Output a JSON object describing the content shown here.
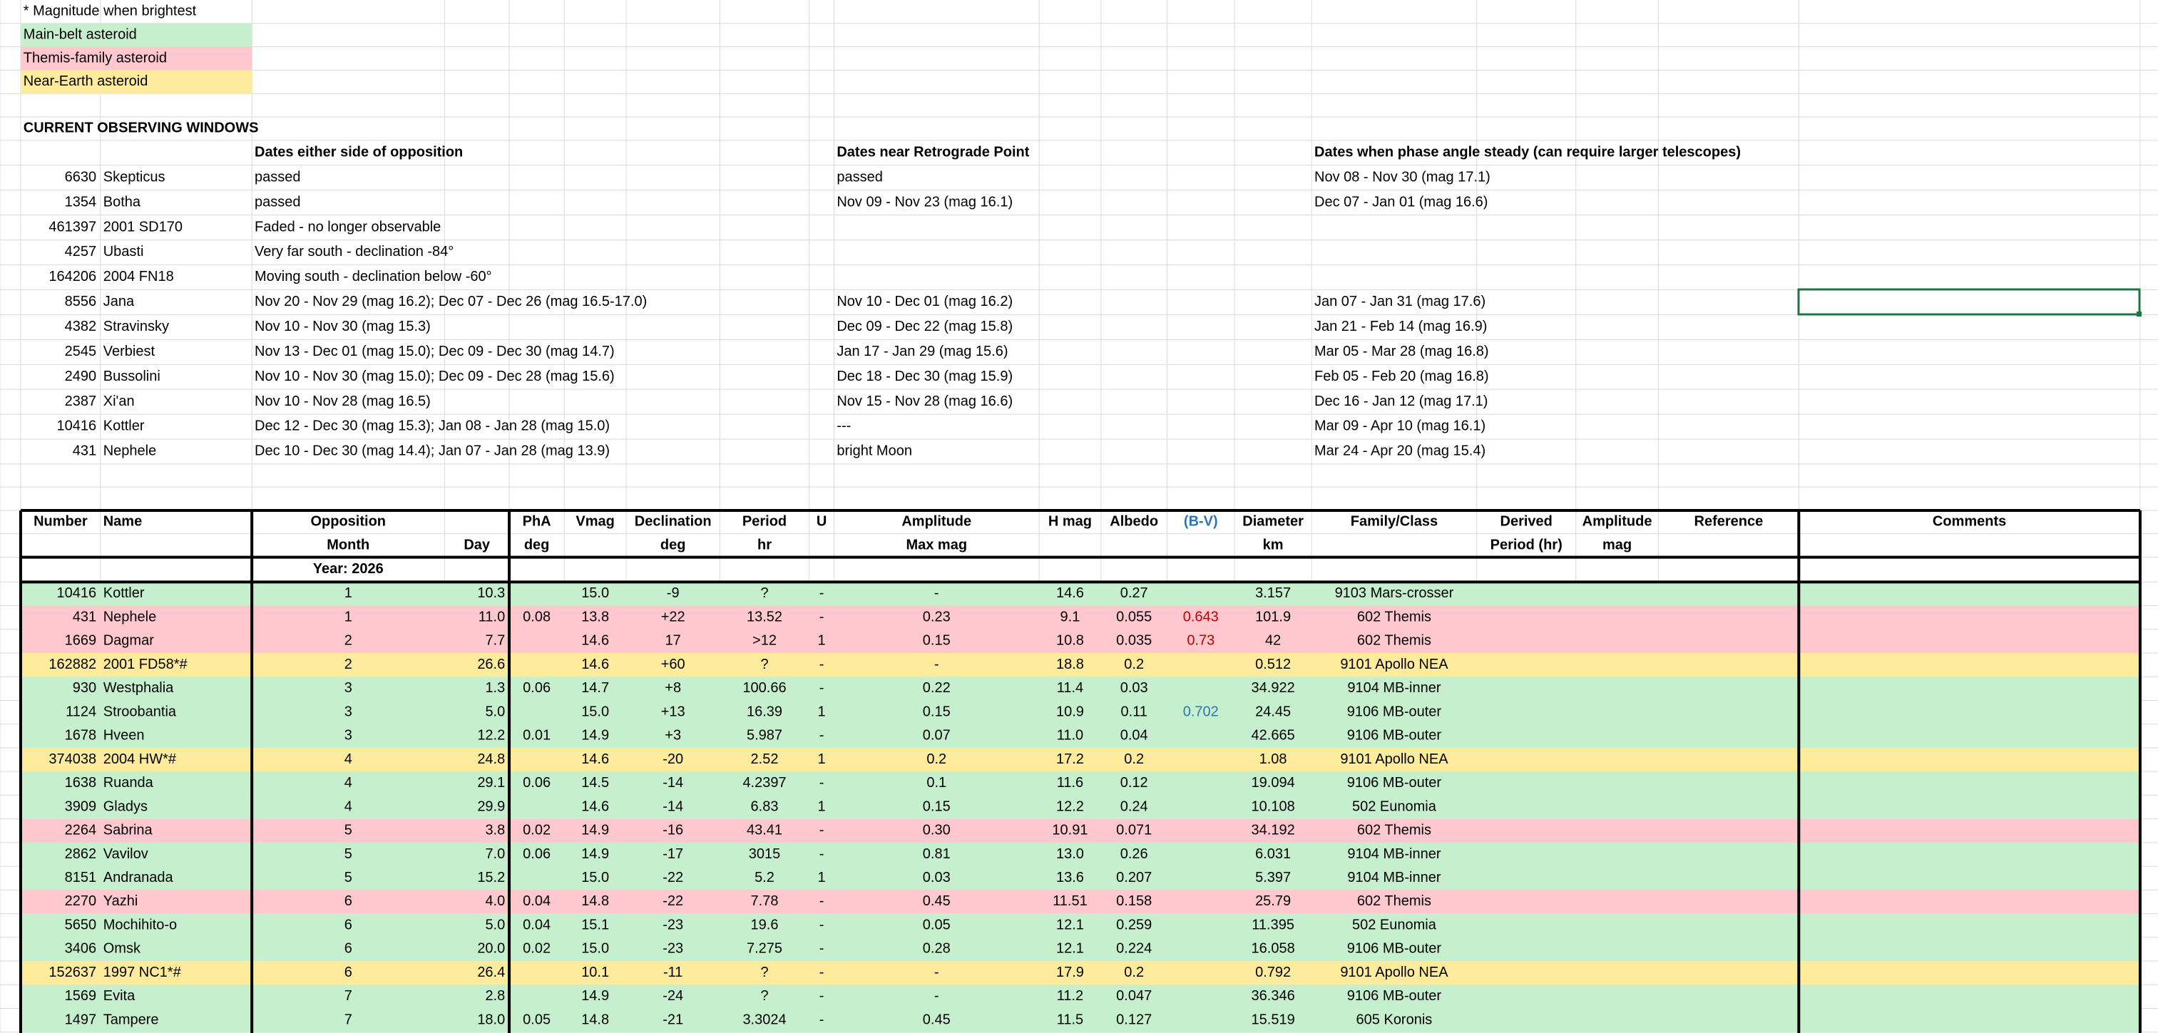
{
  "legend": {
    "note": "* Magnitude when brightest",
    "items": [
      {
        "label": "Main-belt asteroid",
        "color": "#c6efce"
      },
      {
        "label": "Themis-family asteroid",
        "color": "#ffc7ce"
      },
      {
        "label": "Near-Earth asteroid",
        "color": "#ffeb9c"
      }
    ]
  },
  "windows": {
    "title": "CURRENT OBSERVING WINDOWS",
    "headers": [
      "Dates either side of opposition",
      "Dates near Retrograde Point",
      "Dates when phase angle steady (can require larger telescopes)"
    ],
    "rows": [
      [
        "6630",
        "Skepticus",
        "passed",
        "passed",
        "Nov 08 - Nov 30 (mag 17.1)"
      ],
      [
        "1354",
        "Botha",
        "passed",
        "Nov 09 - Nov 23 (mag 16.1)",
        "Dec 07 - Jan 01 (mag 16.6)"
      ],
      [
        "461397",
        "2001 SD170",
        "Faded - no longer observable",
        null,
        null
      ],
      [
        "4257",
        "Ubasti",
        "Very far south - declination  -84°",
        null,
        null
      ],
      [
        "164206",
        "2004 FN18",
        "Moving south - declination below -60°",
        null,
        null
      ],
      [
        "8556",
        "Jana",
        "Nov 20 - Nov 29 (mag 16.2); Dec 07 - Dec 26 (mag 16.5-17.0)",
        "Nov 10 - Dec 01 (mag 16.2)",
        "Jan 07 - Jan 31 (mag 17.6)"
      ],
      [
        "4382",
        "Stravinsky",
        "Nov 10 - Nov 30 (mag 15.3)",
        "Dec 09 - Dec 22 (mag 15.8)",
        "Jan 21 - Feb 14 (mag 16.9)"
      ],
      [
        "2545",
        "Verbiest",
        "Nov 13 - Dec 01 (mag 15.0); Dec 09 - Dec 30 (mag 14.7)",
        "Jan 17 - Jan 29 (mag 15.6)",
        "Mar 05 - Mar 28 (mag 16.8)"
      ],
      [
        "2490",
        "Bussolini",
        "Nov 10 - Nov 30 (mag 15.0); Dec 09 - Dec 28 (mag 15.6)",
        "Dec 18 - Dec 30 (mag 15.9)",
        "Feb 05 - Feb 20 (mag 16.8)"
      ],
      [
        "2387",
        "Xi'an",
        "Nov 10 - Nov 28 (mag 16.5)",
        "Nov 15 - Nov 28 (mag 16.6)",
        "Dec 16 - Jan 12 (mag 17.1)"
      ],
      [
        "10416",
        "Kottler",
        "Dec 12 - Dec 30 (mag 15.3); Jan 08 - Jan 28 (mag 15.0)",
        "---",
        "Mar 09 - Apr 10 (mag 16.1)"
      ],
      [
        "431",
        "Nephele",
        "Dec 10 - Dec 30 (mag 14.4); Jan 07 - Jan 28 (mag 13.9)",
        "bright Moon",
        "Mar 24 - Apr 20 (mag 15.4)"
      ]
    ]
  },
  "table": {
    "header_bv_color": "#2e75b6",
    "header_rows": [
      [
        "Number",
        "Name",
        "Opposition",
        null,
        "PhA",
        "Vmag",
        "Declination",
        "Period",
        "U",
        "Amplitude",
        "H mag",
        "Albedo",
        "(B-V)",
        "Diameter",
        "Family/Class",
        "Derived",
        "Amplitude",
        "Reference",
        "Comments"
      ],
      [
        null,
        null,
        "Month",
        "Day",
        "deg",
        null,
        "deg",
        "hr",
        null,
        "Max mag",
        null,
        null,
        null,
        "km",
        null,
        "Period (hr)",
        "mag",
        null,
        null
      ],
      [
        null,
        null,
        "Year: 2026",
        null,
        null,
        null,
        null,
        null,
        null,
        null,
        null,
        null,
        null,
        null,
        null,
        null,
        null,
        null,
        null
      ]
    ],
    "rows": [
      {
        "fill": "#c6efce",
        "cells": [
          "10416",
          "Kottler",
          "1",
          "10.3",
          null,
          "15.0",
          "-9",
          "?",
          "-",
          "-",
          "14.6",
          "0.27",
          null,
          "3.157",
          "9103 Mars-crosser"
        ]
      },
      {
        "fill": "#ffc7ce",
        "bv_color": "#c00000",
        "cells": [
          "431",
          "Nephele",
          "1",
          "11.0",
          "0.08",
          "13.8",
          "+22",
          "13.52",
          "-",
          "0.23",
          "9.1",
          "0.055",
          "0.643",
          "101.9",
          "602 Themis"
        ]
      },
      {
        "fill": "#ffc7ce",
        "bv_color": "#c00000",
        "cells": [
          "1669",
          "Dagmar",
          "2",
          "7.7",
          null,
          "14.6",
          "17",
          ">12",
          "1",
          "0.15",
          "10.8",
          "0.035",
          "0.73",
          "42",
          "602 Themis"
        ]
      },
      {
        "fill": "#ffeb9c",
        "cells": [
          "162882",
          "2001 FD58*#",
          "2",
          "26.6",
          null,
          "14.6",
          "+60",
          "?",
          "-",
          "-",
          "18.8",
          "0.2",
          null,
          "0.512",
          "9101 Apollo NEA"
        ]
      },
      {
        "fill": "#c6efce",
        "cells": [
          "930",
          "Westphalia",
          "3",
          "1.3",
          "0.06",
          "14.7",
          "+8",
          "100.66",
          "-",
          "0.22",
          "11.4",
          "0.03",
          null,
          "34.922",
          "9104 MB-inner"
        ]
      },
      {
        "fill": "#c6efce",
        "bv_color": "#2e75b6",
        "cells": [
          "1124",
          "Stroobantia",
          "3",
          "5.0",
          null,
          "15.0",
          "+13",
          "16.39",
          "1",
          "0.15",
          "10.9",
          "0.11",
          "0.702",
          "24.45",
          "9106 MB-outer"
        ]
      },
      {
        "fill": "#c6efce",
        "cells": [
          "1678",
          "Hveen",
          "3",
          "12.2",
          "0.01",
          "14.9",
          "+3",
          "5.987",
          "-",
          "0.07",
          "11.0",
          "0.04",
          null,
          "42.665",
          "9106 MB-outer"
        ]
      },
      {
        "fill": "#ffeb9c",
        "cells": [
          "374038",
          "2004 HW*#",
          "4",
          "24.8",
          null,
          "14.6",
          "-20",
          "2.52",
          "1",
          "0.2",
          "17.2",
          "0.2",
          null,
          "1.08",
          "9101 Apollo NEA"
        ]
      },
      {
        "fill": "#c6efce",
        "cells": [
          "1638",
          "Ruanda",
          "4",
          "29.1",
          "0.06",
          "14.5",
          "-14",
          "4.2397",
          "-",
          "0.1",
          "11.6",
          "0.12",
          null,
          "19.094",
          "9106 MB-outer"
        ]
      },
      {
        "fill": "#c6efce",
        "cells": [
          "3909",
          "Gladys",
          "4",
          "29.9",
          null,
          "14.6",
          "-14",
          "6.83",
          "1",
          "0.15",
          "12.2",
          "0.24",
          null,
          "10.108",
          "502 Eunomia"
        ]
      },
      {
        "fill": "#ffc7ce",
        "cells": [
          "2264",
          "Sabrina",
          "5",
          "3.8",
          "0.02",
          "14.9",
          "-16",
          "43.41",
          "-",
          "0.30",
          "10.91",
          "0.071",
          null,
          "34.192",
          "602 Themis"
        ]
      },
      {
        "fill": "#c6efce",
        "cells": [
          "2862",
          "Vavilov",
          "5",
          "7.0",
          "0.06",
          "14.9",
          "-17",
          "3015",
          "-",
          "0.81",
          "13.0",
          "0.26",
          null,
          "6.031",
          "9104 MB-inner"
        ]
      },
      {
        "fill": "#c6efce",
        "cells": [
          "8151",
          "Andranada",
          "5",
          "15.2",
          null,
          "15.0",
          "-22",
          "5.2",
          "1",
          "0.03",
          "13.6",
          "0.207",
          null,
          "5.397",
          "9104 MB-inner"
        ]
      },
      {
        "fill": "#ffc7ce",
        "cells": [
          "2270",
          "Yazhi",
          "6",
          "4.0",
          "0.04",
          "14.8",
          "-22",
          "7.78",
          "-",
          "0.45",
          "11.51",
          "0.158",
          null,
          "25.79",
          "602 Themis"
        ]
      },
      {
        "fill": "#c6efce",
        "cells": [
          "5650",
          "Mochihito-o",
          "6",
          "5.0",
          "0.04",
          "15.1",
          "-23",
          "19.6",
          "-",
          "0.05",
          "12.1",
          "0.259",
          null,
          "11.395",
          "502 Eunomia"
        ]
      },
      {
        "fill": "#c6efce",
        "cells": [
          "3406",
          "Omsk",
          "6",
          "20.0",
          "0.02",
          "15.0",
          "-23",
          "7.275",
          "-",
          "0.28",
          "12.1",
          "0.224",
          null,
          "16.058",
          "9106 MB-outer"
        ]
      },
      {
        "fill": "#ffeb9c",
        "cells": [
          "152637",
          "1997 NC1*#",
          "6",
          "26.4",
          null,
          "10.1",
          "-11",
          "?",
          "-",
          "-",
          "17.9",
          "0.2",
          null,
          "0.792",
          "9101 Apollo NEA"
        ]
      },
      {
        "fill": "#c6efce",
        "cells": [
          "1569",
          "Evita",
          "7",
          "2.8",
          null,
          "14.9",
          "-24",
          "?",
          "-",
          "-",
          "11.2",
          "0.047",
          null,
          "36.346",
          "9106 MB-outer"
        ]
      },
      {
        "fill": "#c6efce",
        "cells": [
          "1497",
          "Tampere",
          "7",
          "18.0",
          "0.05",
          "14.8",
          "-21",
          "3.3024",
          "-",
          "0.45",
          "11.5",
          "0.127",
          null,
          "15.519",
          "605 Koronis"
        ]
      }
    ]
  }
}
